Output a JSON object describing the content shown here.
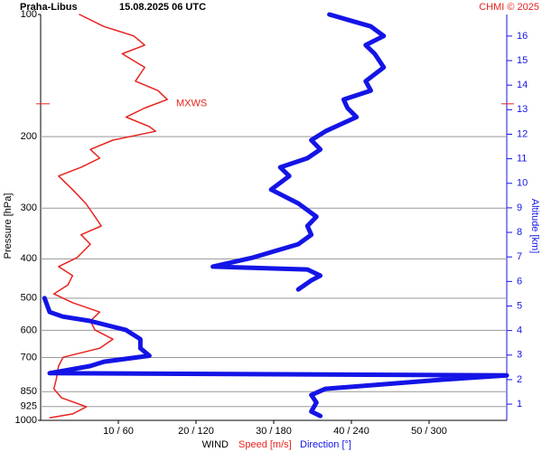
{
  "chart_data": {
    "type": "profile",
    "title": "Praha-Libus",
    "subtitle": "15.08.2025 06 UTC",
    "credit": "CHMI © 2025",
    "ylabel": "Pressure [hPa]",
    "y2label": "Altitude [km]",
    "xlabel": "WIND",
    "log_y": true,
    "grid": true,
    "ylim": [
      1000,
      100
    ],
    "yticks": [
      100,
      200,
      300,
      400,
      500,
      600,
      700,
      850,
      925,
      1000
    ],
    "xlim": [
      0,
      60
    ],
    "x2lim": [
      0,
      360
    ],
    "xticks": [
      {
        "value": 10,
        "label": "10 / 60"
      },
      {
        "value": 20,
        "label": "20 / 120"
      },
      {
        "value": 30,
        "label": "30 / 180"
      },
      {
        "value": 40,
        "label": "40 / 240"
      },
      {
        "value": 50,
        "label": "50 / 300"
      }
    ],
    "y2lim": [
      0.34,
      16.88
    ],
    "y2ticks": [
      1,
      2,
      3,
      4,
      5,
      6,
      7,
      8,
      9,
      10,
      11,
      12,
      13,
      14,
      15,
      16
    ],
    "annotation": {
      "label": "MXWS",
      "pressure": 166
    },
    "series": [
      {
        "name": "Speed [m/s]",
        "color": "#e8231f",
        "pressure": [
          100,
          107,
          113,
          119,
          125,
          135,
          146,
          154,
          162,
          170,
          179,
          189,
          194,
          204,
          215,
          226,
          238,
          250,
          270,
          292,
          315,
          332,
          349,
          368,
          397,
          418,
          440,
          464,
          488,
          513,
          541,
          569,
          599,
          631,
          664,
          699,
          735,
          794,
          836,
          880,
          926,
          964,
          985
        ],
        "values": [
          5.0,
          8.1,
          12.0,
          13.4,
          10.5,
          13.4,
          12.2,
          15.1,
          16.3,
          13.4,
          11.0,
          14.0,
          14.8,
          9.3,
          6.4,
          7.6,
          5.2,
          2.3,
          4.1,
          5.8,
          7.0,
          7.8,
          5.2,
          6.4,
          4.7,
          2.3,
          4.1,
          3.5,
          1.7,
          4.1,
          7.6,
          6.4,
          7.0,
          9.3,
          7.6,
          2.9,
          2.3,
          2.0,
          1.7,
          2.7,
          5.9,
          4.1,
          1.2
        ]
      },
      {
        "name": "Direction [°]",
        "color": "#1414e6",
        "axis": "x2",
        "pressure": [
          100,
          107,
          113,
          119,
          125,
          135,
          146,
          154,
          162,
          170,
          179,
          194,
          204,
          215,
          226,
          238,
          250,
          270,
          292,
          315,
          332,
          349,
          368,
          397,
          418,
          425,
          440,
          452,
          476,
          478,
          500,
          541,
          555,
          569,
          599,
          631,
          664,
          693,
          717,
          735,
          765,
          775,
          794,
          836,
          866,
          904,
          951,
          975
        ],
        "values": [
          223,
          255,
          265,
          251,
          258,
          265,
          251,
          255,
          234,
          237,
          244,
          220,
          209,
          216,
          206,
          185,
          192,
          178,
          199,
          213,
          206,
          209,
          199,
          164,
          133,
          206,
          216,
          209,
          199,
          null,
          3,
          7,
          17,
          38,
          66,
          77,
          77,
          84,
          49,
          38,
          7,
          360,
          310,
          220,
          209,
          213,
          209,
          216
        ]
      }
    ]
  }
}
